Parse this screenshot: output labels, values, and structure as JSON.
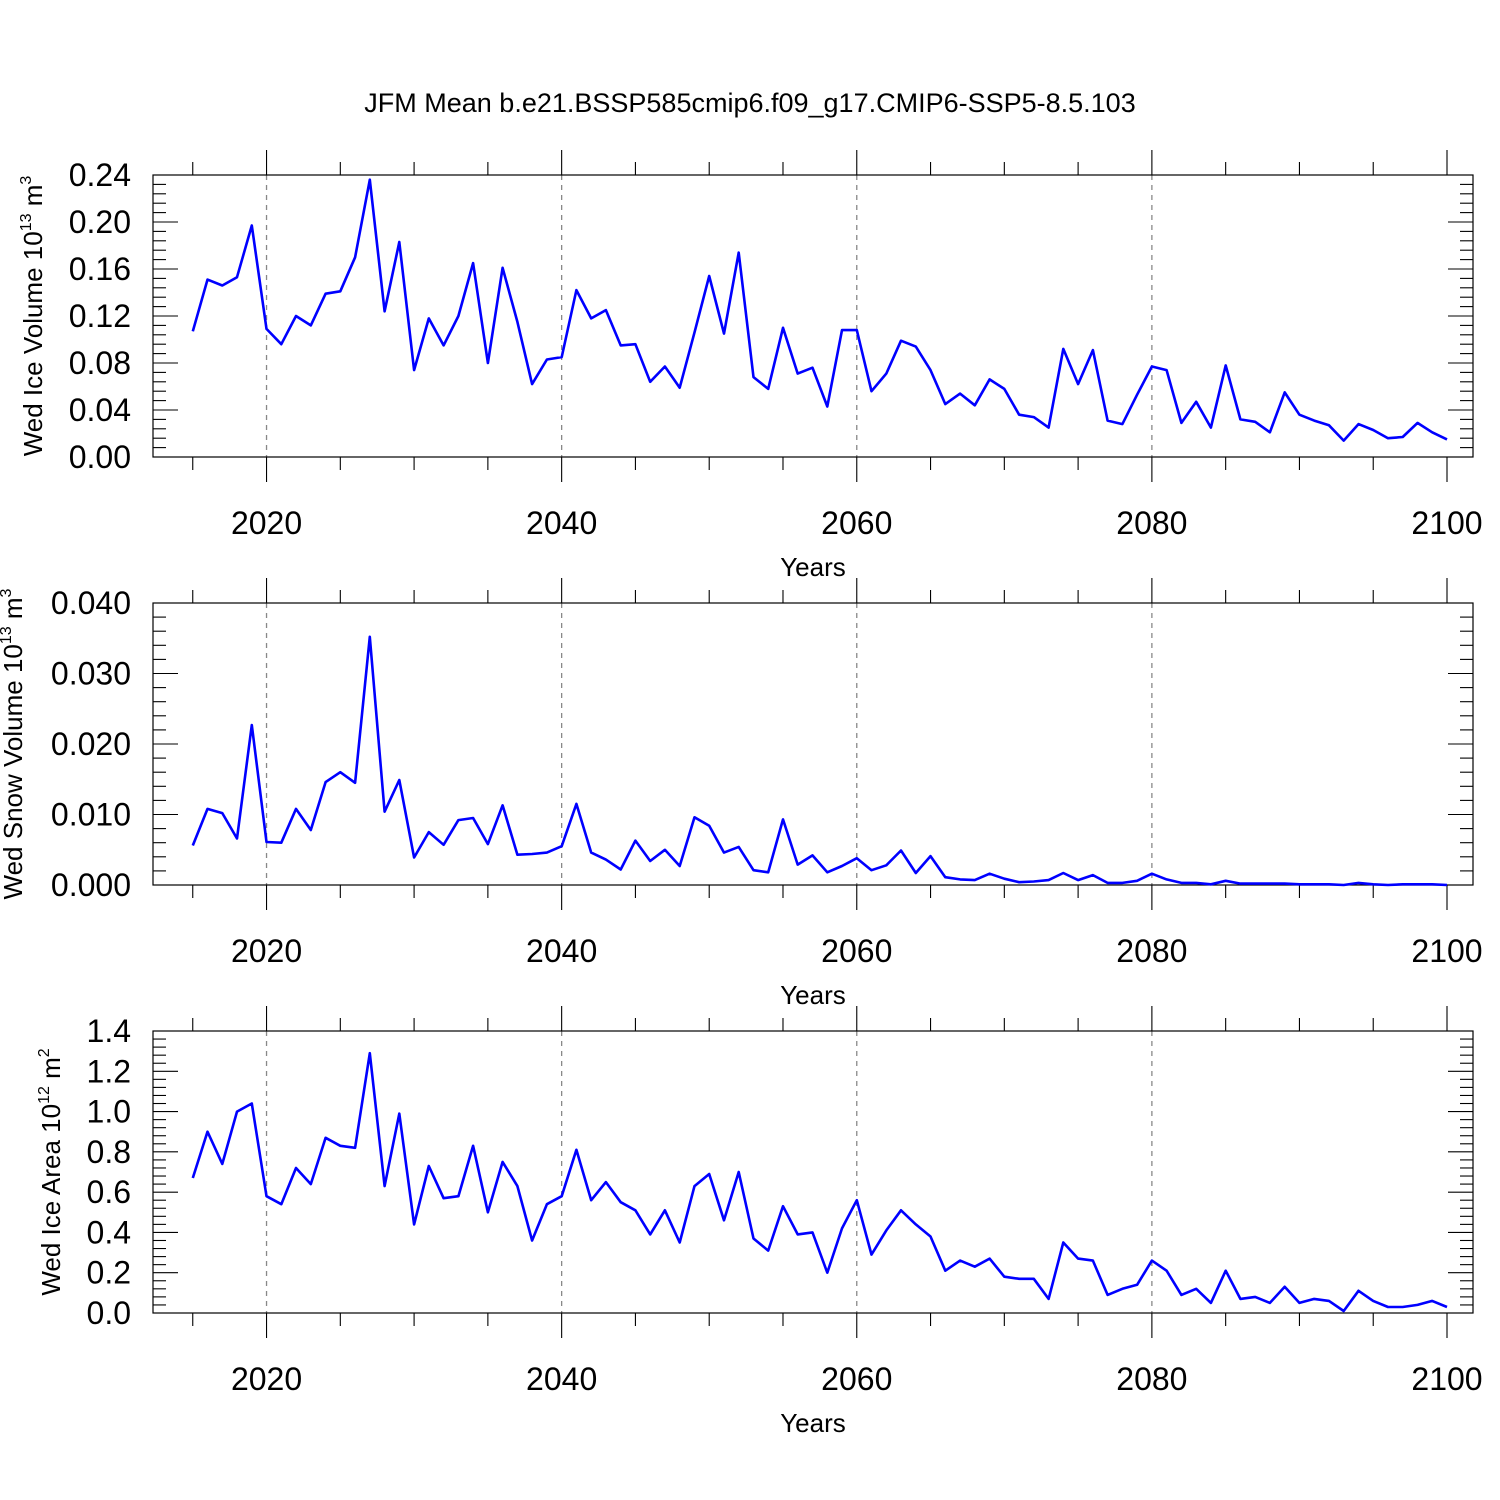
{
  "title": "JFM Mean b.e21.BSSP585cmip6.f09_g17.CMIP6-SSP5-8.5.103",
  "colors": {
    "series": "#0000ff",
    "axis": "#000000",
    "grid": "#888888"
  },
  "chart_data": [
    {
      "type": "line",
      "ylabel": {
        "base": "Wed Ice Volume 10",
        "exp": "13",
        "unit": " m",
        "unit_exp": "3"
      },
      "xlabel": "Years",
      "xlim": [
        2014,
        2100
      ],
      "ylim": [
        0,
        0.24
      ],
      "x_major_ticks": [
        2020,
        2040,
        2060,
        2080,
        2100
      ],
      "x_minor_step": 5,
      "y_major_ticks": [
        "0.00",
        "0.04",
        "0.08",
        "0.12",
        "0.16",
        "0.20",
        "0.24"
      ],
      "y_minor_step": 0.008,
      "grid": "x-major-dashed",
      "x": [
        2015,
        2016,
        2017,
        2018,
        2019,
        2020,
        2021,
        2022,
        2023,
        2024,
        2025,
        2026,
        2027,
        2028,
        2029,
        2030,
        2031,
        2032,
        2033,
        2034,
        2035,
        2036,
        2037,
        2038,
        2039,
        2040,
        2041,
        2042,
        2043,
        2044,
        2045,
        2046,
        2047,
        2048,
        2049,
        2050,
        2051,
        2052,
        2053,
        2054,
        2055,
        2056,
        2057,
        2058,
        2059,
        2060,
        2061,
        2062,
        2063,
        2064,
        2065,
        2066,
        2067,
        2068,
        2069,
        2070,
        2071,
        2072,
        2073,
        2074,
        2075,
        2076,
        2077,
        2078,
        2079,
        2080,
        2081,
        2082,
        2083,
        2084,
        2085,
        2086,
        2087,
        2088,
        2089,
        2090,
        2091,
        2092,
        2093,
        2094,
        2095,
        2096,
        2097,
        2098,
        2099,
        2100
      ],
      "values": [
        0.107,
        0.151,
        0.146,
        0.153,
        0.197,
        0.109,
        0.096,
        0.12,
        0.112,
        0.139,
        0.141,
        0.17,
        0.236,
        0.124,
        0.183,
        0.074,
        0.118,
        0.095,
        0.12,
        0.165,
        0.08,
        0.161,
        0.115,
        0.062,
        0.083,
        0.085,
        0.142,
        0.118,
        0.125,
        0.095,
        0.096,
        0.064,
        0.077,
        0.059,
        0.106,
        0.154,
        0.105,
        0.174,
        0.068,
        0.058,
        0.11,
        0.071,
        0.076,
        0.043,
        0.108,
        0.108,
        0.056,
        0.071,
        0.099,
        0.094,
        0.074,
        0.045,
        0.054,
        0.044,
        0.066,
        0.058,
        0.036,
        0.034,
        0.025,
        0.092,
        0.062,
        0.091,
        0.031,
        0.028,
        0.053,
        0.077,
        0.074,
        0.029,
        0.047,
        0.025,
        0.078,
        0.032,
        0.03,
        0.021,
        0.055,
        0.036,
        0.031,
        0.027,
        0.014,
        0.028,
        0.023,
        0.016,
        0.017,
        0.029,
        0.021,
        0.015
      ]
    },
    {
      "type": "line",
      "ylabel": {
        "base": "Wed Snow Volume 10",
        "exp": "13",
        "unit": " m",
        "unit_exp": "3"
      },
      "xlabel": "Years",
      "xlim": [
        2014,
        2100
      ],
      "ylim": [
        0,
        0.04
      ],
      "x_major_ticks": [
        2020,
        2040,
        2060,
        2080,
        2100
      ],
      "x_minor_step": 5,
      "y_major_ticks": [
        "0.000",
        "0.010",
        "0.020",
        "0.030",
        "0.040"
      ],
      "y_minor_step": 0.002,
      "grid": "x-major-dashed",
      "x": [
        2015,
        2016,
        2017,
        2018,
        2019,
        2020,
        2021,
        2022,
        2023,
        2024,
        2025,
        2026,
        2027,
        2028,
        2029,
        2030,
        2031,
        2032,
        2033,
        2034,
        2035,
        2036,
        2037,
        2038,
        2039,
        2040,
        2041,
        2042,
        2043,
        2044,
        2045,
        2046,
        2047,
        2048,
        2049,
        2050,
        2051,
        2052,
        2053,
        2054,
        2055,
        2056,
        2057,
        2058,
        2059,
        2060,
        2061,
        2062,
        2063,
        2064,
        2065,
        2066,
        2067,
        2068,
        2069,
        2070,
        2071,
        2072,
        2073,
        2074,
        2075,
        2076,
        2077,
        2078,
        2079,
        2080,
        2081,
        2082,
        2083,
        2084,
        2085,
        2086,
        2087,
        2088,
        2089,
        2090,
        2091,
        2092,
        2093,
        2094,
        2095,
        2096,
        2097,
        2098,
        2099,
        2100
      ],
      "values": [
        0.0056,
        0.0108,
        0.0102,
        0.0066,
        0.0227,
        0.0061,
        0.006,
        0.0108,
        0.0078,
        0.0146,
        0.016,
        0.0145,
        0.0352,
        0.0104,
        0.0149,
        0.0039,
        0.0075,
        0.0057,
        0.0092,
        0.0095,
        0.0058,
        0.0113,
        0.0043,
        0.0044,
        0.0046,
        0.0055,
        0.0115,
        0.0046,
        0.0036,
        0.0022,
        0.0063,
        0.0034,
        0.005,
        0.0027,
        0.0096,
        0.0084,
        0.0046,
        0.0054,
        0.0021,
        0.0018,
        0.0093,
        0.0029,
        0.0042,
        0.0018,
        0.0027,
        0.0038,
        0.0021,
        0.0028,
        0.0049,
        0.0017,
        0.0041,
        0.0011,
        0.0008,
        0.0007,
        0.0016,
        0.0009,
        0.0004,
        0.0005,
        0.0007,
        0.0017,
        0.0007,
        0.0014,
        0.0003,
        0.0003,
        0.0006,
        0.0016,
        0.0008,
        0.0003,
        0.0003,
        0.0001,
        0.0006,
        0.0002,
        0.0002,
        0.0002,
        0.0002,
        0.0001,
        0.0001,
        0.0001,
        0.0,
        0.0003,
        0.0001,
        0.0,
        0.0001,
        0.0001,
        0.0001,
        0.0
      ]
    },
    {
      "type": "line",
      "ylabel": {
        "base": "Wed Ice Area 10",
        "exp": "12",
        "unit": " m",
        "unit_exp": "2"
      },
      "xlabel": "Years",
      "xlim": [
        2014,
        2100
      ],
      "ylim": [
        0,
        1.4
      ],
      "x_major_ticks": [
        2020,
        2040,
        2060,
        2080,
        2100
      ],
      "x_minor_step": 5,
      "y_major_ticks": [
        "0.0",
        "0.2",
        "0.4",
        "0.6",
        "0.8",
        "1.0",
        "1.2",
        "1.4"
      ],
      "y_minor_step": 0.04,
      "grid": "x-major-dashed",
      "x": [
        2015,
        2016,
        2017,
        2018,
        2019,
        2020,
        2021,
        2022,
        2023,
        2024,
        2025,
        2026,
        2027,
        2028,
        2029,
        2030,
        2031,
        2032,
        2033,
        2034,
        2035,
        2036,
        2037,
        2038,
        2039,
        2040,
        2041,
        2042,
        2043,
        2044,
        2045,
        2046,
        2047,
        2048,
        2049,
        2050,
        2051,
        2052,
        2053,
        2054,
        2055,
        2056,
        2057,
        2058,
        2059,
        2060,
        2061,
        2062,
        2063,
        2064,
        2065,
        2066,
        2067,
        2068,
        2069,
        2070,
        2071,
        2072,
        2073,
        2074,
        2075,
        2076,
        2077,
        2078,
        2079,
        2080,
        2081,
        2082,
        2083,
        2084,
        2085,
        2086,
        2087,
        2088,
        2089,
        2090,
        2091,
        2092,
        2093,
        2094,
        2095,
        2096,
        2097,
        2098,
        2099,
        2100
      ],
      "values": [
        0.67,
        0.9,
        0.74,
        1.0,
        1.04,
        0.58,
        0.54,
        0.72,
        0.64,
        0.87,
        0.83,
        0.82,
        1.29,
        0.63,
        0.99,
        0.44,
        0.73,
        0.57,
        0.58,
        0.83,
        0.5,
        0.75,
        0.63,
        0.36,
        0.54,
        0.58,
        0.81,
        0.56,
        0.65,
        0.55,
        0.51,
        0.39,
        0.51,
        0.35,
        0.63,
        0.69,
        0.46,
        0.7,
        0.37,
        0.31,
        0.53,
        0.39,
        0.4,
        0.2,
        0.42,
        0.56,
        0.29,
        0.41,
        0.51,
        0.44,
        0.38,
        0.21,
        0.26,
        0.23,
        0.27,
        0.18,
        0.17,
        0.17,
        0.07,
        0.35,
        0.27,
        0.26,
        0.09,
        0.12,
        0.14,
        0.26,
        0.21,
        0.09,
        0.12,
        0.05,
        0.21,
        0.07,
        0.08,
        0.05,
        0.13,
        0.05,
        0.07,
        0.06,
        0.01,
        0.11,
        0.06,
        0.03,
        0.03,
        0.04,
        0.06,
        0.03
      ]
    }
  ]
}
